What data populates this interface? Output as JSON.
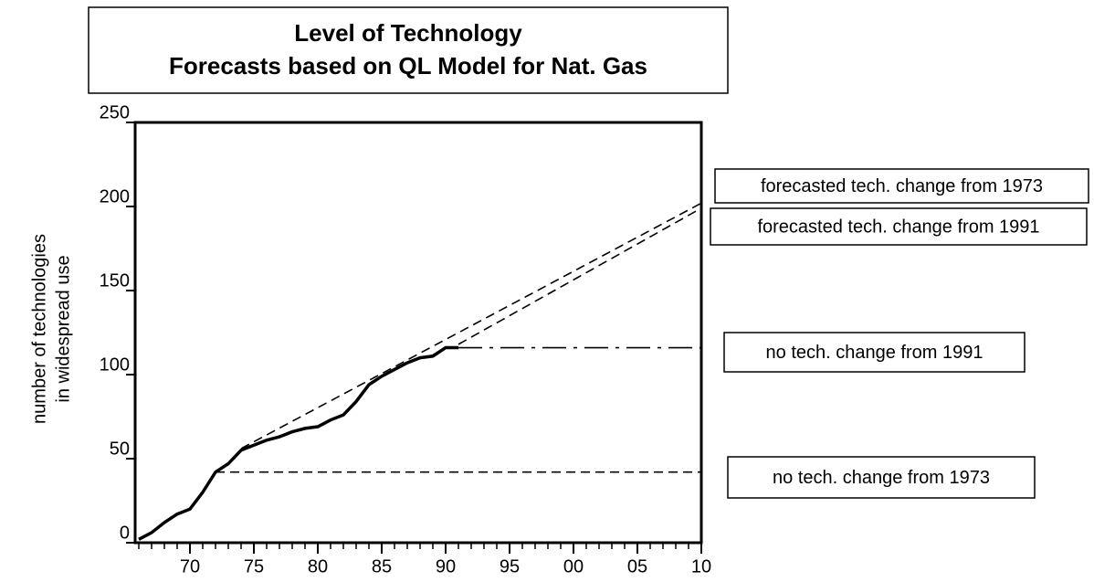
{
  "chart_data": {
    "type": "line",
    "title": [
      "Level of Technology",
      "Forecasts based on QL Model for Nat. Gas"
    ],
    "y_label": [
      "number of technologies",
      "in widespread use"
    ],
    "xlim": [
      1966,
      2010
    ],
    "ylim": [
      0,
      250
    ],
    "xticks": [
      {
        "value": 1970,
        "label": "70"
      },
      {
        "value": 1975,
        "label": "75"
      },
      {
        "value": 1980,
        "label": "80"
      },
      {
        "value": 1985,
        "label": "85"
      },
      {
        "value": 1990,
        "label": "90"
      },
      {
        "value": 1995,
        "label": "95"
      },
      {
        "value": 2000,
        "label": "00"
      },
      {
        "value": 2005,
        "label": "05"
      },
      {
        "value": 2010,
        "label": "10"
      }
    ],
    "xminorticks": [
      1966,
      1967,
      1968,
      1969,
      1970,
      1971,
      1972,
      1973,
      1974,
      1975,
      1976,
      1977,
      1978,
      1979,
      1980,
      1981,
      1982,
      1983,
      1984,
      1985,
      1986,
      1987,
      1988,
      1989,
      1990,
      1991,
      1992,
      1993,
      1994,
      1995,
      1996,
      1997,
      1998,
      1999,
      2000,
      2001,
      2002,
      2003,
      2004,
      2005,
      2006,
      2007,
      2008,
      2009,
      2010
    ],
    "yticks": [
      0,
      50,
      100,
      150,
      200,
      250
    ],
    "series": [
      {
        "style": "solid",
        "color": "#000000",
        "x": [
          1966,
          1967,
          1968,
          1969,
          1970,
          1971,
          1972,
          1973,
          1974,
          1975,
          1976,
          1977,
          1978,
          1979,
          1980,
          1981,
          1982,
          1983,
          1984,
          1985,
          1986,
          1987,
          1988,
          1989,
          1990,
          1991
        ],
        "values": [
          2,
          6,
          12,
          17,
          20,
          30,
          42,
          47,
          55,
          58,
          61,
          63,
          66,
          68,
          69,
          73,
          76,
          84,
          94,
          99,
          103,
          107,
          110,
          111,
          116,
          116
        ]
      },
      {
        "name": "forecasted tech. change from 1973",
        "style": "dashed",
        "color": "#000000",
        "x": [
          1974,
          2010
        ],
        "values": [
          56,
          202
        ]
      },
      {
        "name": "forecasted tech. change from 1991",
        "style": "dashed",
        "color": "#000000",
        "x": [
          1991,
          2010
        ],
        "values": [
          118,
          199
        ]
      },
      {
        "name": "no tech. change from 1991",
        "style": "long-dash",
        "color": "#000000",
        "x": [
          1991,
          2010
        ],
        "values": [
          116,
          116
        ]
      },
      {
        "name": "no tech. change from 1973",
        "style": "dashed",
        "color": "#000000",
        "x": [
          1972,
          2010
        ],
        "values": [
          42,
          42
        ]
      }
    ]
  }
}
